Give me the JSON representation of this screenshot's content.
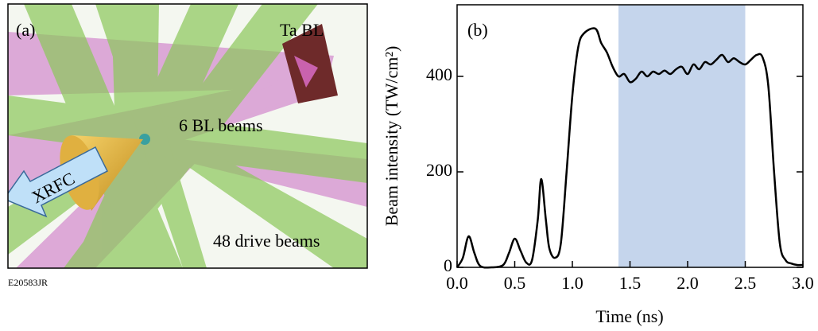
{
  "panel_a": {
    "label": "(a)",
    "target": "Ta BL",
    "bl_beams": "6 BL beams",
    "drive_beams": "48 drive beams",
    "detector": "XRFC"
  },
  "figure_id": "E20583JR",
  "chart_data": {
    "type": "line",
    "panel_label": "(b)",
    "x_label": "Time (ns)",
    "y_label": "Beam intensity (TW/cm²)",
    "xlim": [
      0,
      3.0
    ],
    "ylim": [
      0,
      550
    ],
    "xticks": [
      {
        "value": 0,
        "label": "0.0"
      },
      0.5,
      {
        "value": 1,
        "label": "1.0"
      },
      1.5,
      {
        "value": 2,
        "label": "2.0"
      },
      2.5,
      {
        "value": 3,
        "label": "3.0"
      }
    ],
    "yticks": [
      0,
      200,
      400
    ],
    "highlight": [
      1.4,
      2.5
    ],
    "highlight_color": "#c5d5ec",
    "series": [
      {
        "color": "#000000",
        "x": [
          0.0,
          0.05,
          0.1,
          0.15,
          0.2,
          0.3,
          0.4,
          0.45,
          0.5,
          0.55,
          0.6,
          0.65,
          0.7,
          0.73,
          0.77,
          0.8,
          0.85,
          0.9,
          0.95,
          1.0,
          1.05,
          1.1,
          1.2,
          1.25,
          1.3,
          1.35,
          1.4,
          1.45,
          1.5,
          1.55,
          1.6,
          1.65,
          1.7,
          1.75,
          1.8,
          1.85,
          1.9,
          1.95,
          2.0,
          2.05,
          2.1,
          2.15,
          2.2,
          2.25,
          2.3,
          2.35,
          2.4,
          2.45,
          2.5,
          2.55,
          2.6,
          2.65,
          2.7,
          2.75,
          2.8,
          2.85,
          2.9,
          2.95,
          3.0
        ],
        "values": [
          0,
          20,
          65,
          30,
          3,
          0,
          5,
          30,
          60,
          35,
          10,
          15,
          100,
          185,
          100,
          40,
          20,
          50,
          200,
          360,
          460,
          490,
          500,
          470,
          450,
          420,
          400,
          405,
          388,
          395,
          410,
          400,
          410,
          405,
          412,
          405,
          415,
          420,
          405,
          425,
          415,
          430,
          425,
          435,
          445,
          430,
          438,
          430,
          425,
          435,
          445,
          440,
          380,
          200,
          50,
          15,
          8,
          5,
          5
        ]
      }
    ]
  }
}
